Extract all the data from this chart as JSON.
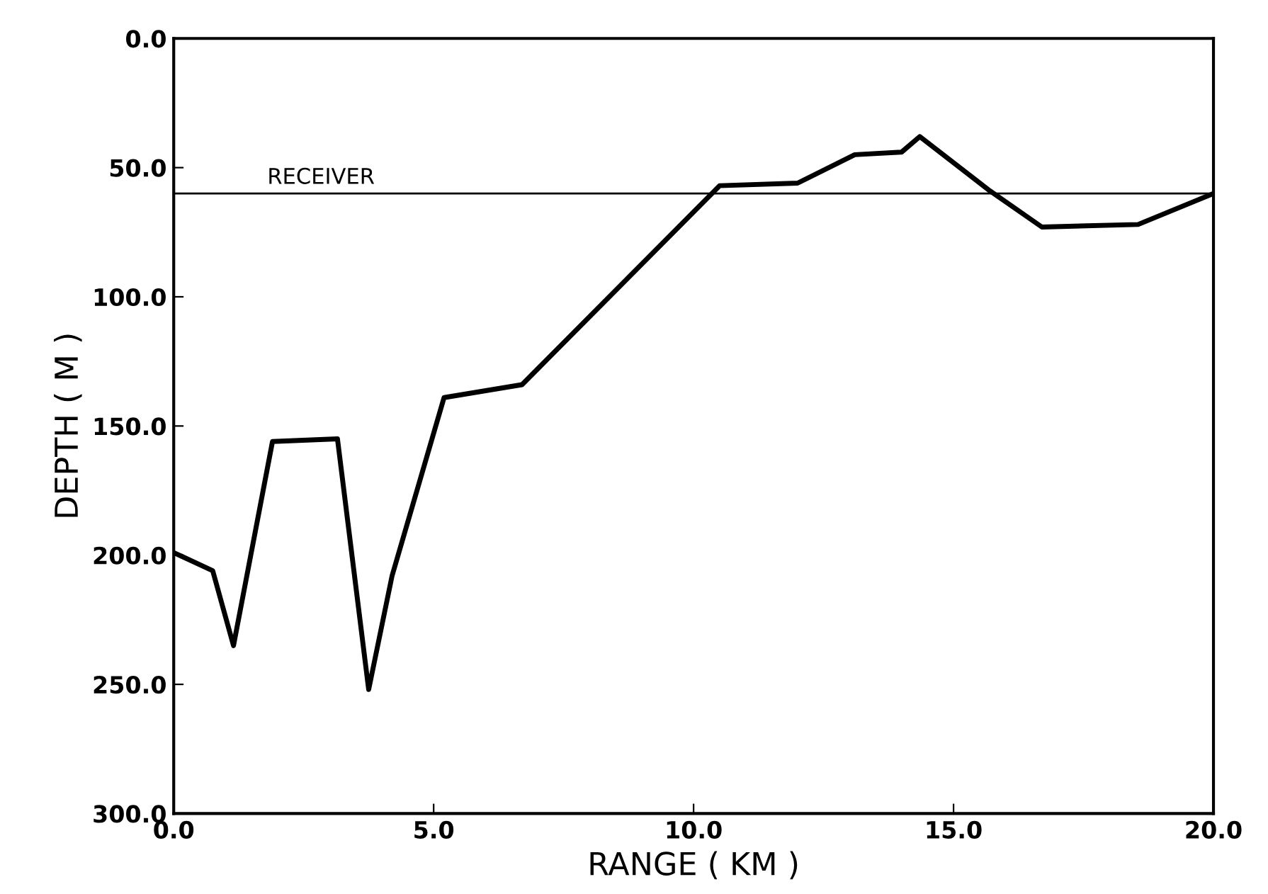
{
  "chart_data": {
    "type": "line",
    "xlabel": "RANGE ( KM )",
    "ylabel": "DEPTH ( M )",
    "x": [
      0,
      0.75,
      1.15,
      1.9,
      3.15,
      3.75,
      4.2,
      5.2,
      6.7,
      10.5,
      12.0,
      13.1,
      14.0,
      14.35,
      15.7,
      16.7,
      18.55,
      20.0
    ],
    "series": [
      {
        "color": "#000000",
        "values": [
          199,
          206,
          235,
          156,
          155,
          252,
          208,
          139,
          134,
          57,
          56,
          45,
          44,
          38,
          59,
          73,
          72,
          60
        ]
      }
    ],
    "xlim": [
      0,
      20
    ],
    "ylim": [
      300,
      0
    ],
    "xticks": [
      {
        "value": 0,
        "label": "0.0"
      },
      {
        "value": 5,
        "label": "5.0"
      },
      {
        "value": 10,
        "label": "10.0"
      },
      {
        "value": 15,
        "label": "15.0"
      },
      {
        "value": 20,
        "label": "20.0"
      }
    ],
    "yticks": [
      {
        "value": 0,
        "label": "0.0"
      },
      {
        "value": 50,
        "label": "50.0"
      },
      {
        "value": 100,
        "label": "100.0"
      },
      {
        "value": 150,
        "label": "150.0"
      },
      {
        "value": 200,
        "label": "200.0"
      },
      {
        "value": 250,
        "label": "250.0"
      },
      {
        "value": 300,
        "label": "300.0"
      }
    ],
    "ref_lines": [
      {
        "axis": "y",
        "value": 60,
        "label": "RECEIVER",
        "color": "#000000"
      }
    ],
    "grid": false,
    "marker": "none",
    "line_style": "solid"
  }
}
